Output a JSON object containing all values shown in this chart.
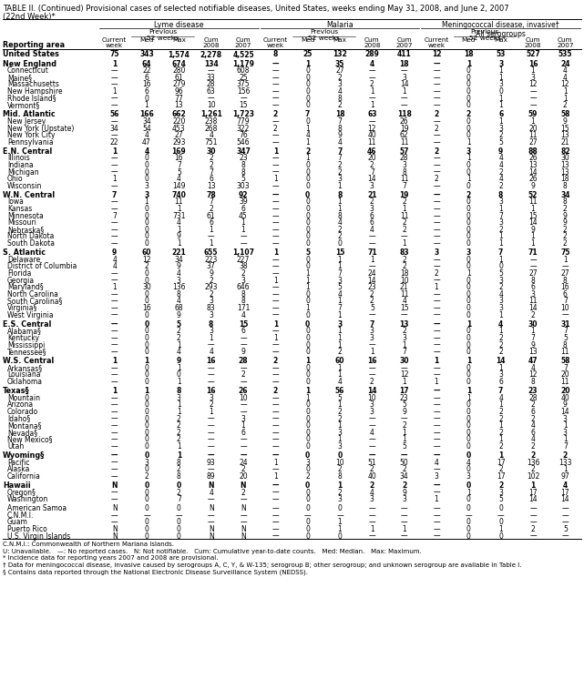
{
  "title_line1": "TABLE II. (Continued) Provisional cases of selected notifiable diseases, United States, weeks ending May 31, 2008, and June 2, 2007",
  "title_line2": "(22nd Week)*",
  "rows": [
    [
      "United States",
      "75",
      "343",
      "1,574",
      "2,278",
      "4,525",
      "8",
      "25",
      "132",
      "289",
      "411",
      "12",
      "18",
      "53",
      "527",
      "535"
    ],
    [
      "New England",
      "1",
      "64",
      "674",
      "134",
      "1,179",
      "—",
      "1",
      "35",
      "4",
      "18",
      "—",
      "1",
      "3",
      "16",
      "24"
    ],
    [
      "Connecticut",
      "—",
      "22",
      "280",
      "—",
      "608",
      "—",
      "0",
      "27",
      "—",
      "—",
      "—",
      "0",
      "1",
      "1",
      "4"
    ],
    [
      "Maine§",
      "—",
      "6",
      "61",
      "33",
      "25",
      "—",
      "0",
      "2",
      "—",
      "3",
      "—",
      "0",
      "1",
      "3",
      "4"
    ],
    [
      "Massachusetts",
      "—",
      "16",
      "279",
      "28",
      "375",
      "—",
      "0",
      "3",
      "2",
      "14",
      "—",
      "0",
      "3",
      "12",
      "12"
    ],
    [
      "New Hampshire",
      "1",
      "6",
      "96",
      "63",
      "156",
      "—",
      "0",
      "4",
      "1",
      "1",
      "—",
      "0",
      "0",
      "—",
      "1"
    ],
    [
      "Rhode Island§",
      "—",
      "0",
      "77",
      "—",
      "—",
      "—",
      "0",
      "8",
      "—",
      "—",
      "—",
      "0",
      "1",
      "—",
      "1"
    ],
    [
      "Vermont§",
      "—",
      "1",
      "13",
      "10",
      "15",
      "—",
      "0",
      "2",
      "1",
      "—",
      "—",
      "0",
      "1",
      "—",
      "2"
    ],
    [
      "Mid. Atlantic",
      "56",
      "166",
      "662",
      "1,261",
      "1,723",
      "2",
      "7",
      "18",
      "63",
      "118",
      "2",
      "2",
      "6",
      "59",
      "58"
    ],
    [
      "New Jersey",
      "—",
      "34",
      "220",
      "238",
      "779",
      "—",
      "0",
      "7",
      "—",
      "26",
      "—",
      "0",
      "1",
      "1",
      "9"
    ],
    [
      "New York (Upstate)",
      "34",
      "54",
      "453",
      "268",
      "322",
      "2",
      "1",
      "8",
      "12",
      "19",
      "2",
      "0",
      "3",
      "20",
      "15"
    ],
    [
      "New York City",
      "—",
      "4",
      "27",
      "4",
      "76",
      "—",
      "4",
      "9",
      "40",
      "62",
      "—",
      "0",
      "2",
      "11",
      "13"
    ],
    [
      "Pennsylvania",
      "22",
      "47",
      "293",
      "751",
      "546",
      "—",
      "1",
      "4",
      "11",
      "11",
      "—",
      "1",
      "5",
      "27",
      "21"
    ],
    [
      "E.N. Central",
      "1",
      "4",
      "169",
      "30",
      "347",
      "1",
      "2",
      "7",
      "46",
      "57",
      "2",
      "3",
      "9",
      "88",
      "82"
    ],
    [
      "Illinois",
      "—",
      "0",
      "16",
      "2",
      "23",
      "—",
      "1",
      "7",
      "20",
      "28",
      "—",
      "1",
      "4",
      "26",
      "30"
    ],
    [
      "Indiana",
      "—",
      "0",
      "7",
      "2",
      "8",
      "—",
      "0",
      "2",
      "2",
      "3",
      "—",
      "0",
      "4",
      "13",
      "13"
    ],
    [
      "Michigan",
      "—",
      "0",
      "5",
      "7",
      "8",
      "—",
      "0",
      "2",
      "7",
      "8",
      "—",
      "0",
      "2",
      "14",
      "13"
    ],
    [
      "Ohio",
      "1",
      "0",
      "4",
      "6",
      "5",
      "1",
      "0",
      "3",
      "14",
      "11",
      "2",
      "1",
      "4",
      "26",
      "18"
    ],
    [
      "Wisconsin",
      "—",
      "3",
      "149",
      "13",
      "303",
      "—",
      "0",
      "1",
      "3",
      "7",
      "—",
      "0",
      "2",
      "9",
      "8"
    ],
    [
      "W.N. Central",
      "7",
      "3",
      "740",
      "78",
      "92",
      "—",
      "0",
      "8",
      "21",
      "19",
      "—",
      "2",
      "8",
      "52",
      "34"
    ],
    [
      "Iowa",
      "—",
      "1",
      "11",
      "7",
      "39",
      "—",
      "0",
      "1",
      "2",
      "2",
      "—",
      "0",
      "3",
      "11",
      "8"
    ],
    [
      "Kansas",
      "—",
      "0",
      "1",
      "2",
      "6",
      "—",
      "0",
      "1",
      "3",
      "1",
      "—",
      "0",
      "1",
      "1",
      "2"
    ],
    [
      "Minnesota",
      "7",
      "0",
      "731",
      "61",
      "45",
      "—",
      "0",
      "8",
      "6",
      "11",
      "—",
      "0",
      "7",
      "15",
      "9"
    ],
    [
      "Missouri",
      "—",
      "0",
      "4",
      "6",
      "1",
      "—",
      "0",
      "4",
      "6",
      "2",
      "—",
      "0",
      "3",
      "14",
      "9"
    ],
    [
      "Nebraska§",
      "—",
      "0",
      "1",
      "1",
      "1",
      "—",
      "0",
      "2",
      "4",
      "2",
      "—",
      "0",
      "2",
      "9",
      "2"
    ],
    [
      "North Dakota",
      "—",
      "0",
      "9",
      "—",
      "—",
      "—",
      "0",
      "2",
      "—",
      "—",
      "—",
      "0",
      "1",
      "1",
      "2"
    ],
    [
      "South Dakota",
      "—",
      "0",
      "1",
      "1",
      "—",
      "—",
      "0",
      "0",
      "—",
      "1",
      "—",
      "0",
      "1",
      "1",
      "2"
    ],
    [
      "S. Atlantic",
      "9",
      "60",
      "221",
      "655",
      "1,107",
      "1",
      "5",
      "15",
      "71",
      "83",
      "3",
      "3",
      "7",
      "71",
      "75"
    ],
    [
      "Delaware",
      "4",
      "12",
      "34",
      "223",
      "227",
      "—",
      "0",
      "1",
      "1",
      "2",
      "—",
      "0",
      "1",
      "—",
      "1"
    ],
    [
      "District of Columbia",
      "4",
      "2",
      "9",
      "37",
      "38",
      "—",
      "0",
      "1",
      "—",
      "2",
      "—",
      "0",
      "0",
      "—",
      "—"
    ],
    [
      "Florida",
      "—",
      "0",
      "4",
      "9",
      "2",
      "—",
      "1",
      "7",
      "24",
      "18",
      "2",
      "1",
      "5",
      "27",
      "27"
    ],
    [
      "Georgia",
      "—",
      "0",
      "3",
      "2",
      "3",
      "1",
      "1",
      "3",
      "14",
      "10",
      "—",
      "0",
      "3",
      "8",
      "8"
    ],
    [
      "Maryland§",
      "1",
      "30",
      "136",
      "293",
      "646",
      "—",
      "1",
      "5",
      "23",
      "21",
      "1",
      "0",
      "2",
      "6",
      "16"
    ],
    [
      "North Carolina",
      "—",
      "0",
      "8",
      "2",
      "8",
      "—",
      "0",
      "4",
      "2",
      "11",
      "—",
      "0",
      "4",
      "3",
      "6"
    ],
    [
      "South Carolina§",
      "—",
      "0",
      "4",
      "3",
      "8",
      "—",
      "0",
      "1",
      "2",
      "4",
      "—",
      "0",
      "3",
      "11",
      "7"
    ],
    [
      "Virginia§",
      "—",
      "16",
      "68",
      "83",
      "171",
      "—",
      "1",
      "7",
      "5",
      "15",
      "—",
      "0",
      "3",
      "14",
      "10"
    ],
    [
      "West Virginia",
      "—",
      "0",
      "9",
      "3",
      "4",
      "—",
      "0",
      "1",
      "—",
      "—",
      "—",
      "0",
      "1",
      "2",
      "—"
    ],
    [
      "E.S. Central",
      "—",
      "0",
      "5",
      "8",
      "15",
      "1",
      "0",
      "3",
      "7",
      "13",
      "—",
      "1",
      "4",
      "30",
      "31"
    ],
    [
      "Alabama§",
      "—",
      "0",
      "2",
      "3",
      "6",
      "—",
      "0",
      "1",
      "3",
      "2",
      "—",
      "0",
      "1",
      "1",
      "7"
    ],
    [
      "Kentucky",
      "—",
      "0",
      "2",
      "1",
      "—",
      "1",
      "0",
      "1",
      "3",
      "3",
      "—",
      "0",
      "2",
      "7",
      "5"
    ],
    [
      "Mississippi",
      "—",
      "0",
      "1",
      "—",
      "—",
      "—",
      "0",
      "1",
      "—",
      "1",
      "—",
      "0",
      "2",
      "9",
      "8"
    ],
    [
      "Tennessee§",
      "—",
      "0",
      "4",
      "4",
      "9",
      "—",
      "0",
      "2",
      "1",
      "7",
      "—",
      "0",
      "2",
      "13",
      "11"
    ],
    [
      "W.S. Central",
      "1",
      "1",
      "9",
      "16",
      "28",
      "2",
      "1",
      "60",
      "16",
      "30",
      "1",
      "1",
      "14",
      "47",
      "58"
    ],
    [
      "Arkansas§",
      "—",
      "0",
      "1",
      "—",
      "—",
      "—",
      "0",
      "1",
      "—",
      "—",
      "—",
      "0",
      "1",
      "4",
      "7"
    ],
    [
      "Louisiana",
      "—",
      "0",
      "0",
      "—",
      "2",
      "—",
      "0",
      "1",
      "—",
      "12",
      "—",
      "0",
      "3",
      "12",
      "20"
    ],
    [
      "Oklahoma",
      "—",
      "0",
      "1",
      "—",
      "—",
      "—",
      "0",
      "4",
      "2",
      "1",
      "1",
      "0",
      "6",
      "8",
      "11"
    ],
    [
      "Texas§",
      "1",
      "1",
      "8",
      "16",
      "26",
      "2",
      "1",
      "56",
      "14",
      "17",
      "—",
      "1",
      "7",
      "23",
      "20"
    ],
    [
      "Mountain",
      "—",
      "0",
      "3",
      "3",
      "10",
      "—",
      "1",
      "5",
      "10",
      "23",
      "—",
      "1",
      "4",
      "28",
      "40"
    ],
    [
      "Arizona",
      "—",
      "0",
      "1",
      "2",
      "—",
      "—",
      "0",
      "1",
      "3",
      "5",
      "—",
      "0",
      "1",
      "2",
      "9"
    ],
    [
      "Colorado",
      "—",
      "0",
      "1",
      "1",
      "—",
      "—",
      "0",
      "2",
      "3",
      "9",
      "—",
      "0",
      "2",
      "6",
      "14"
    ],
    [
      "Idaho§",
      "—",
      "0",
      "2",
      "—",
      "3",
      "—",
      "0",
      "2",
      "—",
      "—",
      "—",
      "0",
      "2",
      "2",
      "3"
    ],
    [
      "Montana§",
      "—",
      "0",
      "2",
      "—",
      "1",
      "—",
      "0",
      "1",
      "—",
      "2",
      "—",
      "0",
      "1",
      "4",
      "1"
    ],
    [
      "Nevada§",
      "—",
      "0",
      "2",
      "—",
      "6",
      "—",
      "0",
      "3",
      "4",
      "1",
      "—",
      "0",
      "2",
      "6",
      "3"
    ],
    [
      "New Mexico§",
      "—",
      "0",
      "2",
      "—",
      "—",
      "—",
      "0",
      "1",
      "—",
      "1",
      "—",
      "0",
      "1",
      "4",
      "1"
    ],
    [
      "Utah",
      "—",
      "0",
      "1",
      "—",
      "—",
      "—",
      "0",
      "3",
      "—",
      "5",
      "—",
      "0",
      "2",
      "2",
      "7"
    ],
    [
      "Wyoming§",
      "—",
      "0",
      "1",
      "—",
      "—",
      "—",
      "0",
      "0",
      "—",
      "—",
      "—",
      "0",
      "1",
      "2",
      "2"
    ],
    [
      "Pacific",
      "—",
      "3",
      "8",
      "93",
      "24",
      "1",
      "3",
      "10",
      "51",
      "50",
      "4",
      "4",
      "17",
      "136",
      "133"
    ],
    [
      "Alaska",
      "—",
      "0",
      "2",
      "—",
      "2",
      "—",
      "0",
      "2",
      "2",
      "2",
      "—",
      "0",
      "2",
      "2",
      "1"
    ],
    [
      "California",
      "—",
      "2",
      "8",
      "89",
      "20",
      "1",
      "2",
      "8",
      "40",
      "34",
      "3",
      "3",
      "17",
      "102",
      "97"
    ],
    [
      "Hawaii",
      "N",
      "0",
      "0",
      "N",
      "N",
      "—",
      "0",
      "1",
      "2",
      "2",
      "—",
      "0",
      "2",
      "1",
      "4"
    ],
    [
      "Oregon§",
      "—",
      "0",
      "2",
      "4",
      "2",
      "—",
      "0",
      "2",
      "4",
      "9",
      "—",
      "1",
      "3",
      "17",
      "17"
    ],
    [
      "Washington",
      "—",
      "0",
      "7",
      "—",
      "—",
      "—",
      "0",
      "3",
      "3",
      "3",
      "1",
      "0",
      "5",
      "14",
      "14"
    ],
    [
      "American Samoa",
      "N",
      "0",
      "0",
      "N",
      "N",
      "—",
      "0",
      "0",
      "—",
      "—",
      "—",
      "0",
      "0",
      "—",
      "—"
    ],
    [
      "C.N.M.I.",
      "—",
      "—",
      "—",
      "—",
      "—",
      "—",
      "—",
      "—",
      "—",
      "—",
      "—",
      "—",
      "—",
      "—",
      "—"
    ],
    [
      "Guam",
      "—",
      "0",
      "0",
      "—",
      "—",
      "—",
      "0",
      "1",
      "—",
      "—",
      "—",
      "0",
      "0",
      "—",
      "—"
    ],
    [
      "Puerto Rico",
      "N",
      "0",
      "0",
      "N",
      "N",
      "—",
      "0",
      "1",
      "1",
      "1",
      "—",
      "0",
      "1",
      "2",
      "5"
    ],
    [
      "U.S. Virgin Islands",
      "N",
      "0",
      "0",
      "N",
      "N",
      "—",
      "0",
      "0",
      "—",
      "—",
      "—",
      "0",
      "0",
      "—",
      "—"
    ]
  ],
  "bold_rows": [
    0,
    1,
    8,
    13,
    19,
    27,
    37,
    42,
    46,
    55,
    59
  ],
  "section_gap_before": [
    1,
    8,
    13,
    19,
    27,
    37,
    42,
    46,
    55,
    59,
    62
  ],
  "footnotes": [
    "C.N.M.I.: Commonwealth of Northern Mariana Islands.",
    "U: Unavailable.   —: No reported cases.   N: Not notifiable.   Cum: Cumulative year-to-date counts.   Med: Median.   Max: Maximum.",
    "* Incidence data for reporting years 2007 and 2008 are provisional.",
    "† Data for meningococcal disease, invasive caused by serogroups A, C, Y, & W-135; serogroup B; other serogroup; and unknown serogroup are available in Table I.",
    "§ Contains data reported through the National Electronic Disease Surveillance System (NEDSS)."
  ]
}
